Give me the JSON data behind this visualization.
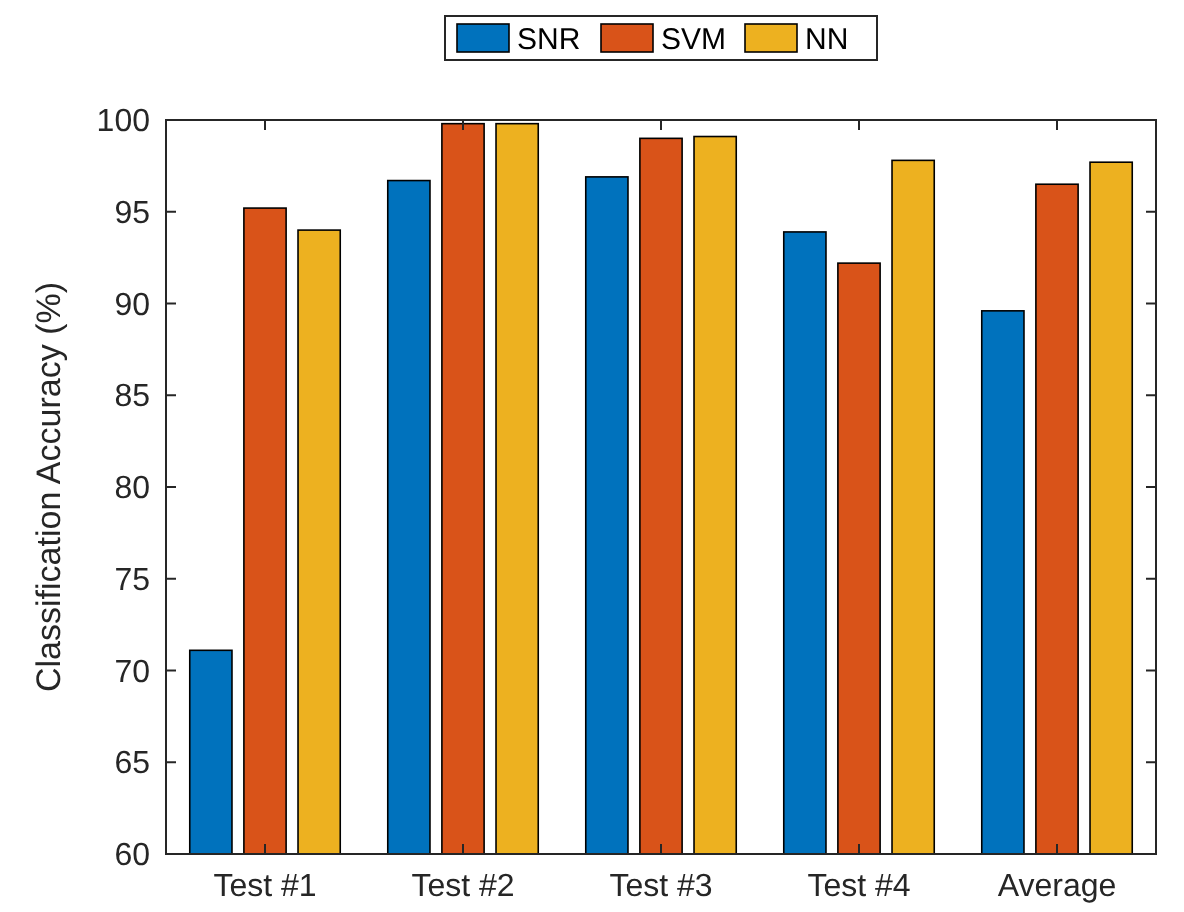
{
  "chart_data": {
    "type": "bar",
    "categories": [
      "Test #1",
      "Test #2",
      "Test #3",
      "Test #4",
      "Average"
    ],
    "series": [
      {
        "name": "SNR",
        "color": "#0072bd",
        "values": [
          71.1,
          96.7,
          96.9,
          93.9,
          89.6
        ]
      },
      {
        "name": "SVM",
        "color": "#d95319",
        "values": [
          95.2,
          99.8,
          99.0,
          92.2,
          96.5
        ]
      },
      {
        "name": "NN",
        "color": "#edb120",
        "values": [
          94.0,
          99.8,
          99.1,
          97.8,
          97.7
        ]
      }
    ],
    "ylabel": "Classification Accuracy (%)",
    "ylim": [
      60,
      100
    ],
    "yticks": [
      60,
      65,
      70,
      75,
      80,
      85,
      90,
      95,
      100
    ],
    "grid": false,
    "legend": "top"
  }
}
